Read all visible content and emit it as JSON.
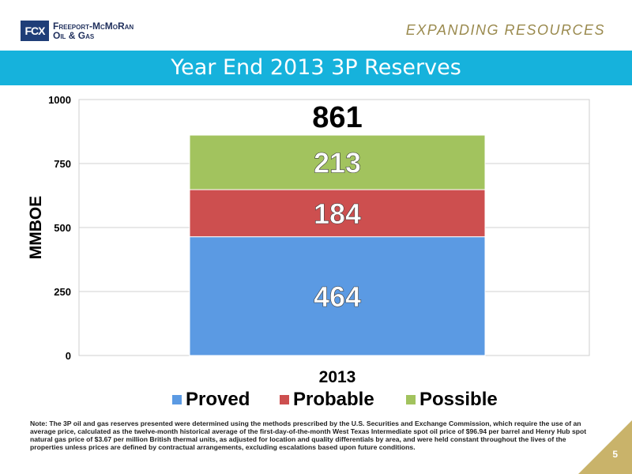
{
  "header": {
    "logo_mark": "FCX",
    "company_line1": "Freeport-McMoRan",
    "company_line2": "Oil & Gas",
    "tagline": "EXPANDING RESOURCES"
  },
  "title": "Year End 2013 3P Reserves",
  "chart_data": {
    "type": "bar",
    "stacked": true,
    "categories": [
      "2013"
    ],
    "series": [
      {
        "name": "Proved",
        "values": [
          464
        ],
        "color": "#5b9ae3"
      },
      {
        "name": "Probable",
        "values": [
          184
        ],
        "color": "#cd4f4f"
      },
      {
        "name": "Possible",
        "values": [
          213
        ],
        "color": "#a2c35e"
      }
    ],
    "total_label": "861",
    "ylabel": "MMBOE",
    "ylim": [
      0,
      1000
    ],
    "yticks": [
      0,
      250,
      500,
      750,
      1000
    ],
    "grid": true,
    "legend": "bottom"
  },
  "footnote": "Note: The 3P oil and gas reserves presented were determined using the methods prescribed by the U.S. Securities and Exchange Commission, which require the use of an average price, calculated as the twelve-month historical average of the first-day-of-the-month West Texas Intermediate spot oil price of $96.94 per barrel and Henry Hub spot natural gas price of $3.67 per million British thermal units, as adjusted for location and quality differentials by area, and were held constant throughout the lives of the properties unless prices are defined by contractual arrangements, excluding escalations based upon future conditions.",
  "page_number": "5"
}
